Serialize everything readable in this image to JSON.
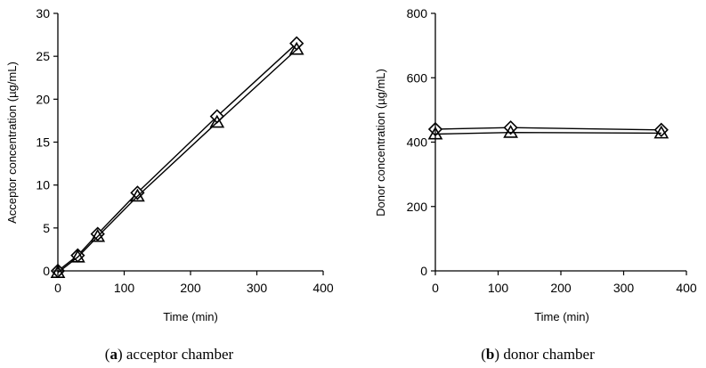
{
  "chart_data": [
    {
      "type": "line",
      "xlabel": "Time (min)",
      "ylabel": "Acceptor concentration (µg/mL)",
      "xlim": [
        0,
        400
      ],
      "ylim": [
        0,
        30
      ],
      "xticks": [
        0,
        100,
        200,
        300,
        400
      ],
      "yticks": [
        0,
        5,
        10,
        15,
        20,
        25,
        30
      ],
      "grid": false,
      "caption": {
        "letter": "a",
        "text": "acceptor chamber"
      },
      "series": [
        {
          "marker": "diamond",
          "x": [
            0,
            30,
            60,
            120,
            240,
            360
          ],
          "y": [
            0,
            1.8,
            4.3,
            9.1,
            18.0,
            26.5
          ]
        },
        {
          "marker": "triangle",
          "x": [
            0,
            30,
            60,
            120,
            240,
            360
          ],
          "y": [
            -0.2,
            1.6,
            4.0,
            8.7,
            17.3,
            25.8
          ]
        }
      ]
    },
    {
      "type": "line",
      "xlabel": "Time (min)",
      "ylabel": "Donor concentration (µg/mL)",
      "xlim": [
        0,
        400
      ],
      "ylim": [
        0,
        800
      ],
      "xticks": [
        0,
        100,
        200,
        300,
        400
      ],
      "yticks": [
        0,
        200,
        400,
        600,
        800
      ],
      "grid": false,
      "caption": {
        "letter": "b",
        "text": "donor chamber"
      },
      "series": [
        {
          "marker": "diamond",
          "x": [
            0,
            120,
            360
          ],
          "y": [
            440,
            445,
            438
          ]
        },
        {
          "marker": "triangle",
          "x": [
            0,
            120,
            360
          ],
          "y": [
            425,
            430,
            428
          ]
        }
      ]
    }
  ]
}
